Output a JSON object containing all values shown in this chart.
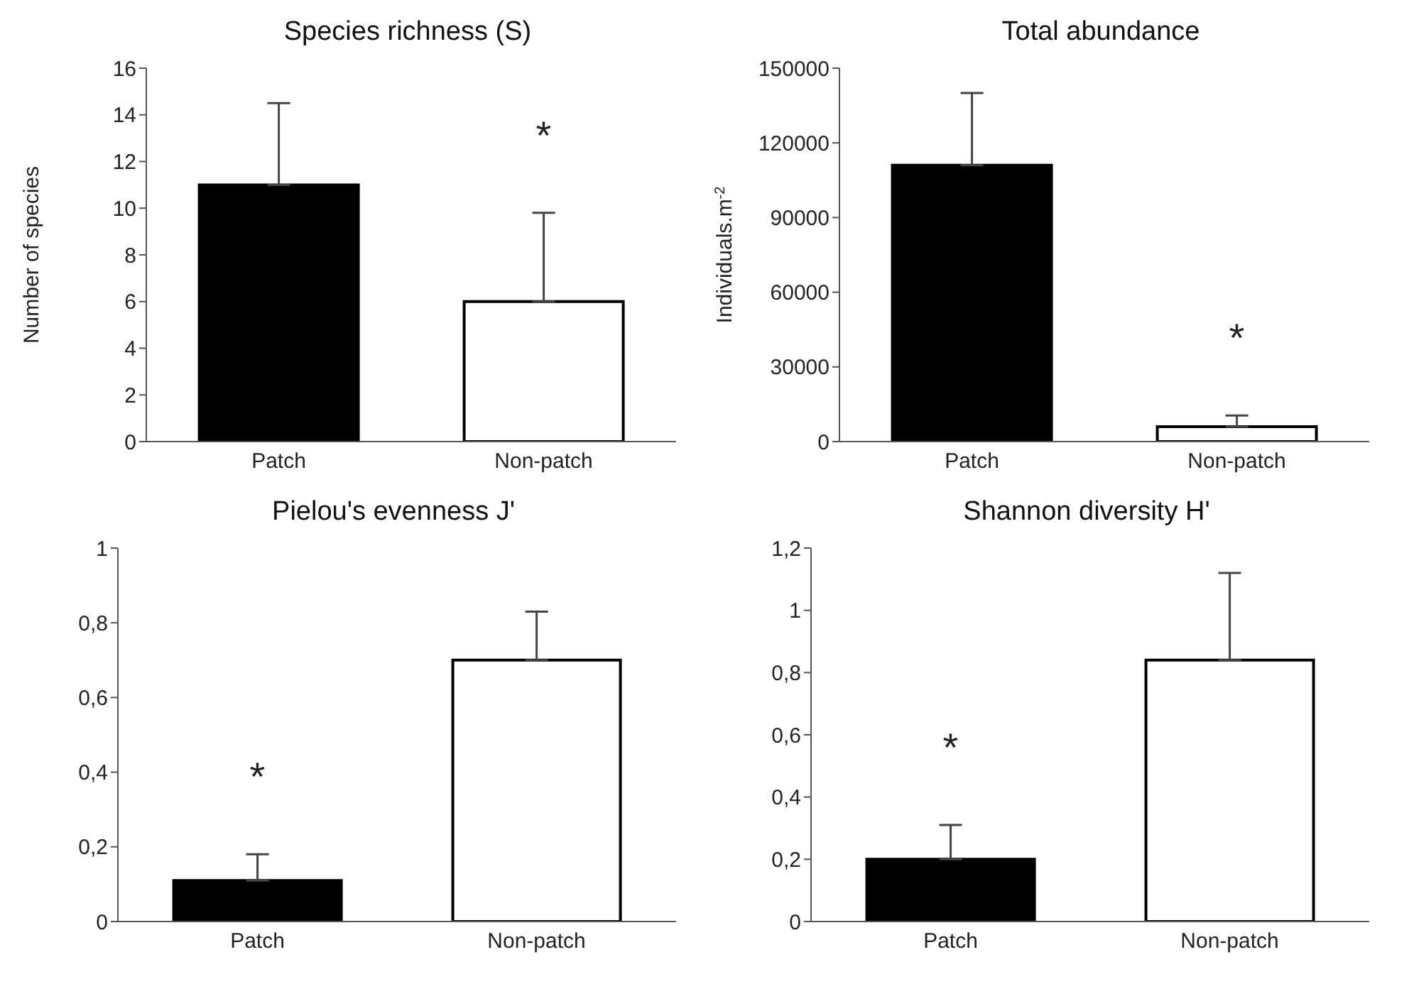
{
  "chart_data": [
    {
      "type": "bar",
      "title": "Species richness (S)",
      "ylabel": "Number  of species",
      "categories": [
        "Patch",
        "Non-patch"
      ],
      "values": [
        11,
        6
      ],
      "colors": [
        "#000000",
        "#ffffff"
      ],
      "errors": [
        [
          11,
          14.5
        ],
        [
          6,
          9.8
        ]
      ],
      "ylim": [
        0,
        16
      ],
      "yticks": [
        0,
        2,
        4,
        6,
        8,
        10,
        12,
        14,
        16
      ],
      "annotations": [
        "*"
      ]
    },
    {
      "type": "bar",
      "title": "Total abundance",
      "ylabel": "Individuals.m$^{-2}$",
      "categories": [
        "Patch",
        "Non-patch"
      ],
      "values": [
        111000,
        6000
      ],
      "colors": [
        "#000000",
        "#ffffff"
      ],
      "errors": [
        [
          111000,
          140000
        ],
        [
          6000,
          10500
        ]
      ],
      "ylim": [
        0,
        150000
      ],
      "yticks": [
        0,
        30000,
        60000,
        90000,
        120000,
        150000
      ],
      "annotations": [
        "*"
      ]
    },
    {
      "type": "bar",
      "title": "Pielou's evenness J'",
      "categories": [
        "Patch",
        "Non-patch"
      ],
      "values": [
        0.11,
        0.7
      ],
      "colors": [
        "#000000",
        "#ffffff"
      ],
      "errors": [
        [
          0.11,
          0.18
        ],
        [
          0.7,
          0.83
        ]
      ],
      "ylim": [
        0,
        1
      ],
      "yticks": [
        0,
        {
          "value": 0.2,
          "label": "0,2"
        },
        {
          "value": 0.4,
          "label": "0,4"
        },
        {
          "value": 0.6,
          "label": "0,6"
        },
        {
          "value": 0.8,
          "label": "0,8"
        },
        1
      ],
      "annotations": [
        "*"
      ]
    },
    {
      "type": "bar",
      "title": "Shannon diversity H'",
      "categories": [
        "Patch",
        "Non-patch"
      ],
      "values": [
        0.2,
        0.84
      ],
      "colors": [
        "#000000",
        "#ffffff"
      ],
      "errors": [
        [
          0.2,
          0.31
        ],
        [
          0.84,
          1.12
        ]
      ],
      "ylim": [
        0,
        1.2
      ],
      "yticks": [
        0,
        {
          "value": 0.2,
          "label": "0,2"
        },
        {
          "value": 0.4,
          "label": "0,4"
        },
        {
          "value": 0.6,
          "label": "0,6"
        },
        {
          "value": 0.8,
          "label": "0,8"
        },
        1,
        {
          "value": 1.2,
          "label": "1,2"
        }
      ],
      "annotations": [
        "*"
      ]
    }
  ]
}
